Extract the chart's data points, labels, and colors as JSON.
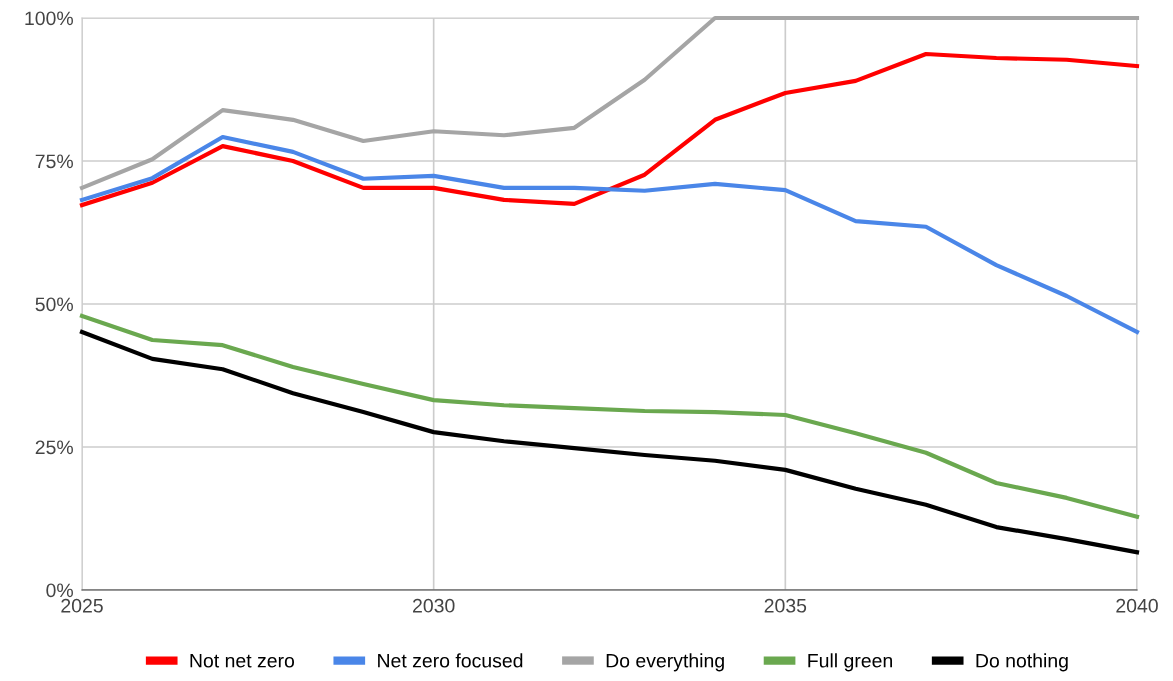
{
  "chart_data": {
    "type": "line",
    "x": [
      2025,
      2026,
      2027,
      2028,
      2029,
      2030,
      2031,
      2032,
      2033,
      2034,
      2035,
      2036,
      2037,
      2038,
      2039,
      2040
    ],
    "series": [
      {
        "name": "Not net zero",
        "color": "#ff0000",
        "values": [
          67.3,
          71.2,
          77.6,
          75.0,
          70.3,
          70.3,
          68.2,
          67.5,
          72.6,
          82.2,
          86.9,
          89.0,
          93.7,
          93.0,
          92.7,
          91.6
        ]
      },
      {
        "name": "Net zero focused",
        "color": "#4a86e8",
        "values": [
          68.2,
          72.0,
          79.2,
          76.6,
          71.9,
          72.4,
          70.3,
          70.3,
          69.8,
          71.0,
          69.9,
          64.5,
          63.5,
          56.8,
          51.4,
          45.1
        ]
      },
      {
        "name": "Do everything",
        "color": "#a5a5a5",
        "values": [
          70.3,
          75.3,
          83.9,
          82.2,
          78.5,
          80.2,
          79.5,
          80.8,
          89.2,
          100,
          100,
          100,
          100,
          100,
          100,
          100
        ]
      },
      {
        "name": "Full green",
        "color": "#6aa84f",
        "values": [
          47.9,
          43.7,
          42.8,
          39.0,
          36.0,
          33.2,
          32.3,
          31.8,
          31.3,
          31.1,
          30.6,
          27.4,
          24.0,
          18.7,
          16.1,
          12.8
        ]
      },
      {
        "name": "Do nothing",
        "color": "#000000",
        "values": [
          45.1,
          40.4,
          38.6,
          34.4,
          31.1,
          27.6,
          26.0,
          24.8,
          23.6,
          22.6,
          21.0,
          17.7,
          14.9,
          11.0,
          8.9,
          6.6
        ]
      }
    ],
    "xlim": [
      2025,
      2040
    ],
    "xticks": [
      2025,
      2030,
      2035,
      2040
    ],
    "ylim": [
      0,
      100
    ],
    "yticks": [
      {
        "value": 0,
        "label": "0%"
      },
      {
        "value": 25,
        "label": "25%"
      },
      {
        "value": 50,
        "label": "50%"
      },
      {
        "value": 75,
        "label": "75%"
      },
      {
        "value": 100,
        "label": "100%"
      }
    ],
    "grid": true,
    "legend": "bottom",
    "marker": "none",
    "line_style": "solid"
  }
}
